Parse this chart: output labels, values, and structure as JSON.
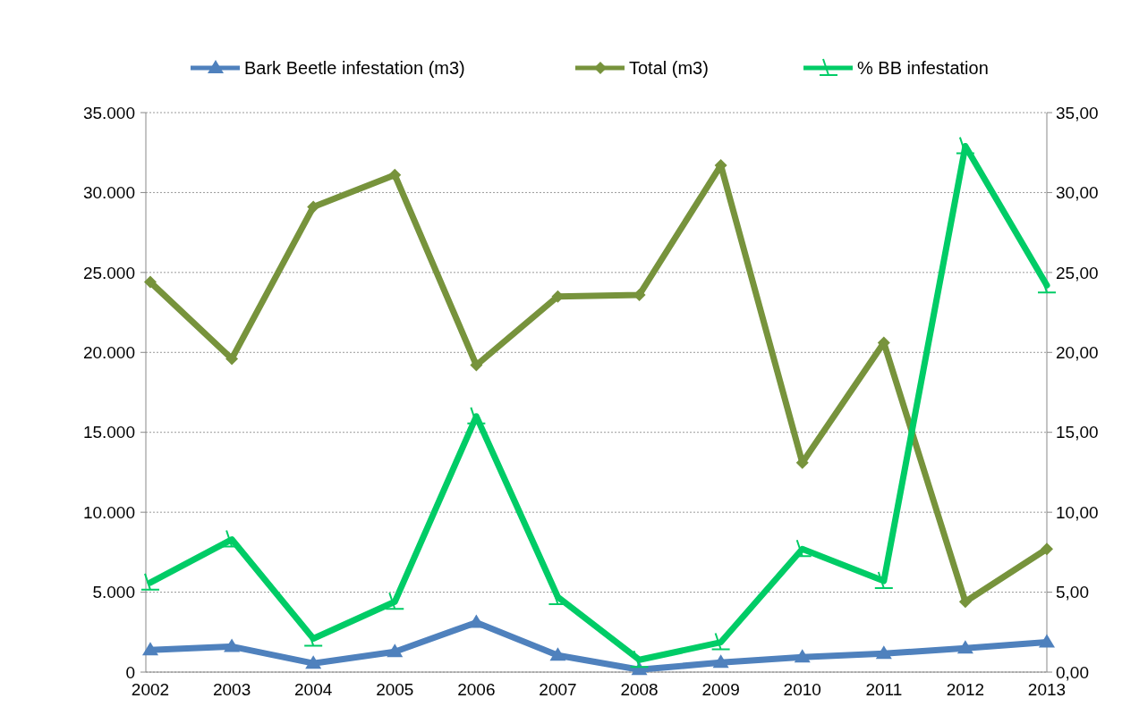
{
  "chart_data": {
    "type": "line",
    "categories": [
      "2002",
      "2003",
      "2004",
      "2005",
      "2006",
      "2007",
      "2008",
      "2009",
      "2010",
      "2011",
      "2012",
      "2013"
    ],
    "series": [
      {
        "name": "Bark Beetle infestation (m3)",
        "color": "#4f81bd",
        "marker": "triangle",
        "values": [
          1380,
          1600,
          550,
          1270,
          3100,
          1050,
          150,
          600,
          940,
          1160,
          1490,
          1870
        ]
      },
      {
        "name": "Total (m3)",
        "color": "#77933c",
        "marker": "diamond",
        "values": [
          24400,
          19600,
          29100,
          31100,
          19200,
          23500,
          23600,
          31700,
          13100,
          20600,
          4400,
          7700
        ]
      },
      {
        "name": "% BB infestation",
        "color": "#00cc66",
        "marker": "cross",
        "axis": "y2",
        "values": [
          5.6,
          8.3,
          2.1,
          4.4,
          16.0,
          4.7,
          0.77,
          1.87,
          7.7,
          5.7,
          32.9,
          24.2
        ]
      }
    ],
    "ylim": [
      0,
      35000
    ],
    "yticks": [
      {
        "value": 0,
        "label": "0"
      },
      {
        "value": 5000,
        "label": "5.000"
      },
      {
        "value": 10000,
        "label": "10.000"
      },
      {
        "value": 15000,
        "label": "15.000"
      },
      {
        "value": 20000,
        "label": "20.000"
      },
      {
        "value": 25000,
        "label": "25.000"
      },
      {
        "value": 30000,
        "label": "30.000"
      },
      {
        "value": 35000,
        "label": "35.000"
      }
    ],
    "y2lim": [
      0,
      35
    ],
    "y2ticks": [
      {
        "value": 0,
        "label": "0,00"
      },
      {
        "value": 5,
        "label": "5,00"
      },
      {
        "value": 10,
        "label": "10,00"
      },
      {
        "value": 15,
        "label": "15,00"
      },
      {
        "value": 20,
        "label": "20,00"
      },
      {
        "value": 25,
        "label": "25,00"
      },
      {
        "value": 30,
        "label": "30,00"
      },
      {
        "value": 35,
        "label": "35,00"
      }
    ],
    "grid": "y",
    "legend": "top"
  }
}
